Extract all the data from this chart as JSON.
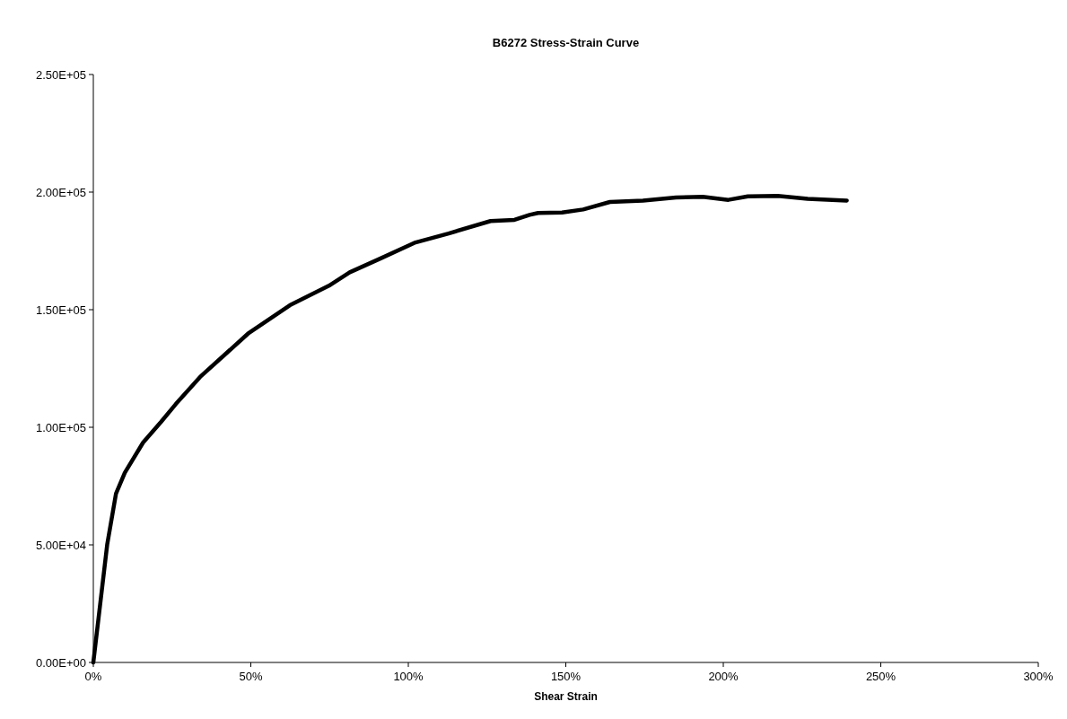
{
  "chart_data": {
    "type": "line",
    "title": "B6272 Stress-Strain Curve",
    "xlabel": "Shear Strain",
    "x": [
      0,
      4.4,
      7.2,
      10,
      15.8,
      21.5,
      26.2,
      33.9,
      49.1,
      62.4,
      74.8,
      81.4,
      90.9,
      102.3,
      112.8,
      126.1,
      133.7,
      138.5,
      141.2,
      148.8,
      155.5,
      164,
      174.5,
      185,
      193.5,
      201.6,
      207.8,
      217.3,
      226.8,
      239.2
    ],
    "series": [
      {
        "color": "#000000",
        "values": [
          0,
          50100,
          71800,
          80700,
          93500,
          102300,
          109900,
          121400,
          139800,
          151900,
          160200,
          165900,
          171600,
          178600,
          182400,
          187700,
          188200,
          190300,
          191100,
          191300,
          192600,
          195800,
          196400,
          197700,
          198000,
          196700,
          198200,
          198400,
          197100,
          196400
        ]
      }
    ],
    "xlim": [
      0,
      300
    ],
    "xticks": [
      {
        "value": 0,
        "label": "0%"
      },
      {
        "value": 50,
        "label": "50%"
      },
      {
        "value": 100,
        "label": "100%"
      },
      {
        "value": 150,
        "label": "150%"
      },
      {
        "value": 200,
        "label": "200%"
      },
      {
        "value": 250,
        "label": "250%"
      },
      {
        "value": 300,
        "label": "300%"
      }
    ],
    "ylim": [
      0,
      250000
    ],
    "yticks": [
      {
        "value": 0,
        "label": "0.00E+00"
      },
      {
        "value": 50000,
        "label": "5.00E+04"
      },
      {
        "value": 100000,
        "label": "1.00E+05"
      },
      {
        "value": 150000,
        "label": "1.50E+05"
      },
      {
        "value": 200000,
        "label": "2.00E+05"
      },
      {
        "value": 250000,
        "label": "2.50E+05"
      }
    ],
    "grid": false,
    "marker": "none",
    "line_style": "solid"
  }
}
